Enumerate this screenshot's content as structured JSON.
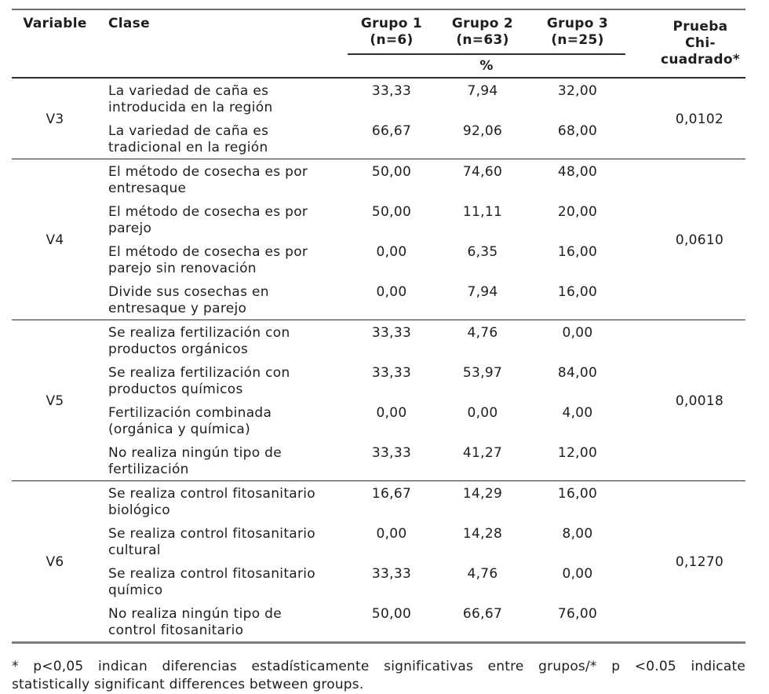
{
  "table": {
    "header": {
      "variable_label": "Variable",
      "clase_label": "Clase",
      "groups": [
        {
          "name": "Grupo 1",
          "n": "(n=6)"
        },
        {
          "name": "Grupo 2",
          "n": "(n=63)"
        },
        {
          "name": "Grupo 3",
          "n": "(n=25)"
        }
      ],
      "unit_row": "%",
      "chi_lines": [
        "Prueba",
        "Chi-",
        "cuadrado*"
      ]
    },
    "sections": [
      {
        "variable": "V3",
        "chi": "0,0102",
        "rows": [
          {
            "clase": "La variedad de caña es\nintroducida en la región",
            "g1": "33,33",
            "g2": "7,94",
            "g3": "32,00"
          },
          {
            "clase": "La variedad de caña es\ntradicional en la región",
            "g1": "66,67",
            "g2": "92,06",
            "g3": "68,00"
          }
        ]
      },
      {
        "variable": "V4",
        "chi": "0,0610",
        "rows": [
          {
            "clase": "El método de cosecha es por\nentresaque",
            "g1": "50,00",
            "g2": "74,60",
            "g3": "48,00"
          },
          {
            "clase": "El método de cosecha es por\nparejo",
            "g1": "50,00",
            "g2": "11,11",
            "g3": "20,00"
          },
          {
            "clase": "El método de cosecha es por\nparejo sin renovación",
            "g1": "0,00",
            "g2": "6,35",
            "g3": "16,00"
          },
          {
            "clase": "Divide sus cosechas en\nentresaque y parejo",
            "g1": "0,00",
            "g2": "7,94",
            "g3": "16,00"
          }
        ]
      },
      {
        "variable": "V5",
        "chi": "0,0018",
        "rows": [
          {
            "clase": "Se realiza fertilización con\nproductos orgánicos",
            "g1": "33,33",
            "g2": "4,76",
            "g3": "0,00"
          },
          {
            "clase": "Se realiza fertilización con\nproductos químicos",
            "g1": "33,33",
            "g2": "53,97",
            "g3": "84,00"
          },
          {
            "clase": "Fertilización combinada\n(orgánica y química)",
            "g1": "0,00",
            "g2": "0,00",
            "g3": "4,00"
          },
          {
            "clase": "No realiza ningún tipo de\nfertilización",
            "g1": "33,33",
            "g2": "41,27",
            "g3": "12,00"
          }
        ]
      },
      {
        "variable": "V6",
        "chi": "0,1270",
        "rows": [
          {
            "clase": "Se realiza control fitosanitario\nbiológico",
            "g1": "16,67",
            "g2": "14,29",
            "g3": "16,00"
          },
          {
            "clase": "Se realiza control fitosanitario\ncultural",
            "g1": "0,00",
            "g2": "14,28",
            "g3": "8,00"
          },
          {
            "clase": "Se realiza control fitosanitario\nquímico",
            "g1": "33,33",
            "g2": "4,76",
            "g3": "0,00"
          },
          {
            "clase": "No realiza ningún tipo de\ncontrol fitosanitario",
            "g1": "50,00",
            "g2": "66,67",
            "g3": "76,00"
          }
        ]
      }
    ]
  },
  "footnote": {
    "line1": "* p<0,05 indican diferencias estadísticamente significativas entre grupos/* p <0.05 indicate",
    "line2": "statistically significant differences between groups."
  }
}
